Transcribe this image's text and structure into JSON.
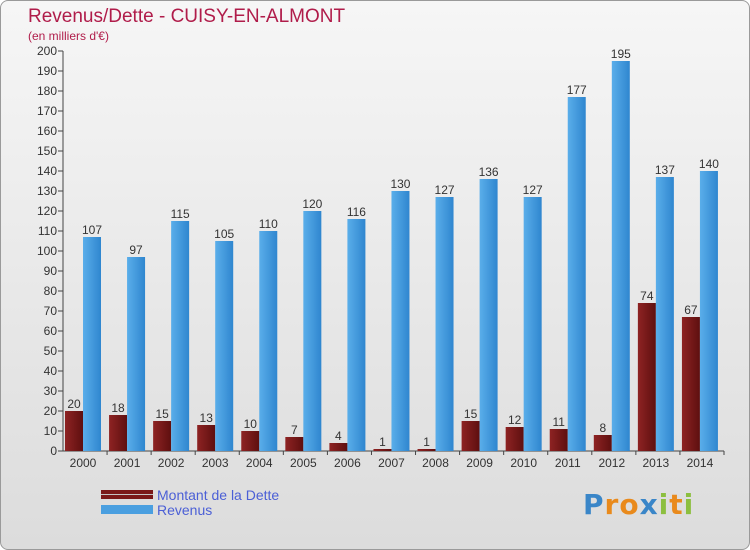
{
  "title": "Revenus/Dette - CUISY-EN-ALMONT",
  "subtitle": "(en milliers d'€)",
  "legend": [
    {
      "label": "Montant de la Dette",
      "color": "#7a1a1a"
    },
    {
      "label": "Revenus",
      "color": "#4a9fe0"
    }
  ],
  "logo_text": "Proxiti",
  "chart_data": {
    "type": "bar",
    "title": "Revenus/Dette - CUISY-EN-ALMONT",
    "subtitle": "(en milliers d'€)",
    "categories": [
      "2000",
      "2001",
      "2002",
      "2003",
      "2004",
      "2005",
      "2006",
      "2007",
      "2008",
      "2009",
      "2010",
      "2011",
      "2012",
      "2013",
      "2014"
    ],
    "series": [
      {
        "name": "Montant de la Dette",
        "color": "#7a1a1a",
        "values": [
          20,
          18,
          15,
          13,
          10,
          7,
          4,
          1,
          1,
          15,
          12,
          11,
          8,
          74,
          67
        ]
      },
      {
        "name": "Revenus",
        "color": "#4a9fe0",
        "values": [
          107,
          97,
          115,
          105,
          110,
          120,
          116,
          130,
          127,
          136,
          127,
          177,
          195,
          137,
          140
        ]
      }
    ],
    "ylim": [
      0,
      200
    ],
    "yticks": [
      0,
      10,
      20,
      30,
      40,
      50,
      60,
      70,
      80,
      90,
      100,
      110,
      120,
      130,
      140,
      150,
      160,
      170,
      180,
      190,
      200
    ],
    "grid": false,
    "legend_position": "bottom-left"
  }
}
